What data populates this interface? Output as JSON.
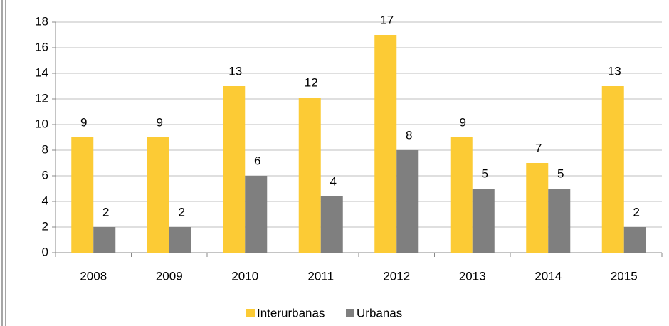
{
  "chart_data": {
    "type": "bar",
    "categories": [
      "2008",
      "2009",
      "2010",
      "2011",
      "2012",
      "2013",
      "2014",
      "2015"
    ],
    "series": [
      {
        "name": "Interurbanas",
        "color": "#fccb35",
        "values": [
          9,
          9,
          13,
          12.1,
          17,
          9,
          7,
          13
        ],
        "value_labels": [
          "9",
          "9",
          "13",
          "12",
          "17",
          "9",
          "7",
          "13"
        ]
      },
      {
        "name": "Urbanas",
        "color": "#7f7f7f",
        "values": [
          2,
          2,
          6,
          4.4,
          8,
          5,
          5,
          2
        ],
        "value_labels": [
          "2",
          "2",
          "6",
          "4",
          "8",
          "5",
          "5",
          "2"
        ]
      }
    ],
    "ylim": [
      0,
      18
    ],
    "yticks": [
      0,
      2,
      4,
      6,
      8,
      10,
      12,
      14,
      16,
      18
    ],
    "grid": true,
    "legend": "bottom"
  }
}
